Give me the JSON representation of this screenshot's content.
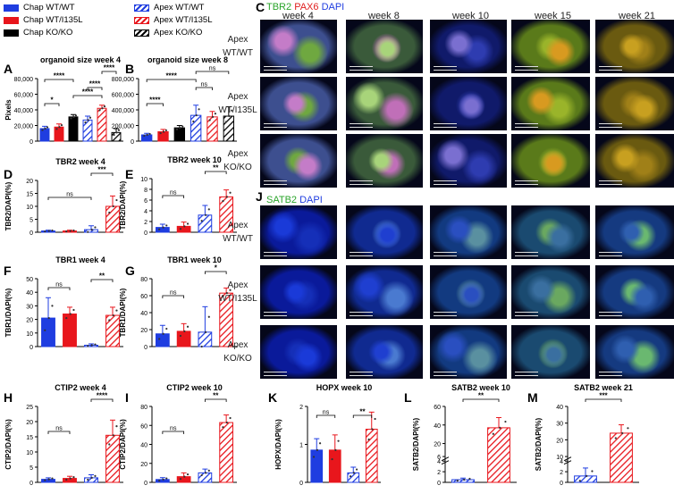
{
  "legend": [
    {
      "label": "Chap WT/WT",
      "color": "#1f3de0",
      "style": "solid"
    },
    {
      "label": "Apex WT/WT",
      "color": "#1f3de0",
      "style": "hatch"
    },
    {
      "label": "Chap WT/I135L",
      "color": "#e8161c",
      "style": "solid"
    },
    {
      "label": "Apex WT/I135L",
      "color": "#e8161c",
      "style": "hatch"
    },
    {
      "label": "Chap KO/KO",
      "color": "#000000",
      "style": "solid"
    },
    {
      "label": "Apex KO/KO",
      "color": "#000000",
      "style": "hatch"
    }
  ],
  "panels": {
    "C": "C",
    "J": "J",
    "micro_c_title": {
      "tbr2": "TBR2",
      "pax6": "PAX6",
      "dapi": "DAPI"
    },
    "micro_j_title": {
      "satb2": "SATB2",
      "dapi": "DAPI"
    },
    "weeks": [
      "week 4",
      "week 8",
      "week 10",
      "week 15",
      "week 21"
    ],
    "rows": [
      "Apex\nWT/WT",
      "Apex\nWT/I135L",
      "Apex\nKO/KO"
    ]
  },
  "chart_data": [
    {
      "panel": "A",
      "type": "bar",
      "title": "organoid size week 4",
      "ylabel": "Pixels",
      "ylim": [
        0,
        80000
      ],
      "yticks": [
        "0",
        "20,000",
        "40,000",
        "60,000",
        "80,000"
      ],
      "groups": [
        "Chap WT/WT",
        "Chap WT/I135L",
        "Chap KO/KO",
        "Apex WT/WT",
        "Apex WT/I135L",
        "Apex KO/KO"
      ],
      "values": [
        16000,
        18000,
        31000,
        27000,
        42000,
        11000
      ],
      "errors": [
        3000,
        4000,
        3000,
        5000,
        4000,
        5000
      ],
      "sig": [
        {
          "a": 0,
          "b": 1,
          "label": "*",
          "level": 1
        },
        {
          "a": 2,
          "b": 4,
          "label": "****",
          "level": 2
        },
        {
          "a": 3,
          "b": 4,
          "label": "****",
          "level": 3
        },
        {
          "a": 0,
          "b": 2,
          "label": "****",
          "level": 4
        },
        {
          "a": 4,
          "b": 5,
          "label": "****",
          "level": 5
        }
      ]
    },
    {
      "panel": "B",
      "type": "bar",
      "title": "organoid size week 8",
      "ylabel": "",
      "ylim": [
        0,
        800000
      ],
      "yticks": [
        "0",
        "200,000",
        "400,000",
        "600,000",
        "800,000"
      ],
      "groups": [
        "Chap WT/WT",
        "Chap WT/I135L",
        "Chap KO/KO",
        "Apex WT/WT",
        "Apex WT/I135L",
        "Apex KO/KO"
      ],
      "values": [
        80000,
        120000,
        170000,
        330000,
        310000,
        320000
      ],
      "errors": [
        20000,
        30000,
        30000,
        130000,
        70000,
        120000
      ],
      "sig": [
        {
          "a": 0,
          "b": 1,
          "label": "****",
          "level": 1
        },
        {
          "a": 3,
          "b": 4,
          "label": "ns",
          "level": 3
        },
        {
          "a": 0,
          "b": 3,
          "label": "****",
          "level": 4
        },
        {
          "a": 3,
          "b": 5,
          "label": "ns",
          "level": 5
        }
      ]
    },
    {
      "panel": "D",
      "type": "bar",
      "title": "TBR2 week 4",
      "ylabel": "TBR2/DAPI(%)",
      "ylim": [
        0,
        20
      ],
      "yticks": [
        "0",
        "5",
        "10",
        "15",
        "20"
      ],
      "groups": [
        "Chap WT/WT",
        "Chap WT/I135L",
        "Apex WT/WT",
        "Apex WT/I135L"
      ],
      "values": [
        0.5,
        0.5,
        1,
        10
      ],
      "errors": [
        0.3,
        0.3,
        1.5,
        4
      ],
      "sig": [
        {
          "a": 0,
          "b": 2,
          "label": "ns",
          "level": 2
        },
        {
          "a": 2,
          "b": 3,
          "label": "***",
          "level": 5
        }
      ]
    },
    {
      "panel": "E",
      "type": "bar",
      "title": "TBR2 week 10",
      "ylabel": "TBR2/DAPI(%)",
      "ylim": [
        0,
        10
      ],
      "yticks": [
        "0",
        "2",
        "4",
        "6",
        "8",
        "10"
      ],
      "groups": [
        "Chap WT/WT",
        "Chap WT/I135L",
        "Apex WT/WT",
        "Apex WT/I135L"
      ],
      "values": [
        0.9,
        1.1,
        3.2,
        6.6
      ],
      "errors": [
        0.6,
        0.8,
        1.8,
        1.3
      ],
      "sig": [
        {
          "a": 0,
          "b": 1,
          "label": "ns",
          "level": 2
        },
        {
          "a": 2,
          "b": 3,
          "label": "**",
          "level": 5
        }
      ]
    },
    {
      "panel": "F",
      "type": "bar",
      "title": "TBR1 week 4",
      "ylabel": "TBR1/DAPI(%)",
      "ylim": [
        0,
        50
      ],
      "yticks": [
        "0",
        "10",
        "20",
        "30",
        "40",
        "50"
      ],
      "groups": [
        "Chap WT/WT",
        "Chap WT/I135L",
        "Apex WT/WT",
        "Apex WT/I135L"
      ],
      "values": [
        21,
        24,
        1,
        23
      ],
      "errors": [
        15,
        5,
        1,
        6
      ],
      "sig": [
        {
          "a": 0,
          "b": 1,
          "label": "ns",
          "level": 3
        },
        {
          "a": 2,
          "b": 3,
          "label": "**",
          "level": 4
        }
      ]
    },
    {
      "panel": "G",
      "type": "bar",
      "title": "TBR1 week 10",
      "ylabel": "TBR1/DAPI(%)",
      "ylim": [
        0,
        80
      ],
      "yticks": [
        "0",
        "20",
        "40",
        "60",
        "80"
      ],
      "groups": [
        "Chap WT/WT",
        "Chap WT/I135L",
        "Apex WT/WT",
        "Apex WT/I135L"
      ],
      "values": [
        15,
        18,
        17,
        63
      ],
      "errors": [
        10,
        9,
        30,
        6
      ],
      "sig": [
        {
          "a": 0,
          "b": 1,
          "label": "ns",
          "level": 2
        },
        {
          "a": 2,
          "b": 3,
          "label": "*",
          "level": 5
        }
      ]
    },
    {
      "panel": "H",
      "type": "bar",
      "title": "CTIP2 week 4",
      "ylabel": "CTIP2/DAPI(%)",
      "ylim": [
        0,
        25
      ],
      "yticks": [
        "0",
        "5",
        "10",
        "15",
        "20",
        "25"
      ],
      "groups": [
        "Chap WT/WT",
        "Chap WT/I135L",
        "Apex WT/WT",
        "Apex WT/I135L"
      ],
      "values": [
        1,
        1.3,
        1.5,
        15.5
      ],
      "errors": [
        0.5,
        0.7,
        1,
        5
      ],
      "sig": [
        {
          "a": 0,
          "b": 1,
          "label": "ns",
          "level": 1
        },
        {
          "a": 2,
          "b": 3,
          "label": "****",
          "level": 5
        }
      ]
    },
    {
      "panel": "I",
      "type": "bar",
      "title": "CTIP2 week 10",
      "ylabel": "CTIP2/DAPI(%)",
      "ylim": [
        0,
        80
      ],
      "yticks": [
        "0",
        "20",
        "40",
        "60",
        "80"
      ],
      "groups": [
        "Chap WT/WT",
        "Chap WT/I135L",
        "Apex WT/WT",
        "Apex WT/I135L"
      ],
      "values": [
        3,
        6,
        10,
        63
      ],
      "errors": [
        2,
        4,
        4,
        8
      ],
      "sig": [
        {
          "a": 0,
          "b": 1,
          "label": "ns",
          "level": 1
        },
        {
          "a": 2,
          "b": 3,
          "label": "**",
          "level": 5
        }
      ]
    },
    {
      "panel": "K",
      "type": "bar",
      "title": "HOPX week 10",
      "ylabel": "HOPX/DAPI(%)",
      "ylim": [
        0,
        2
      ],
      "yticks": [
        "0",
        "1",
        "2"
      ],
      "groups": [
        "Chap WT/WT",
        "Chap WT/I135L",
        "Apex WT/WT",
        "Apex WT/I135L"
      ],
      "values": [
        0.85,
        0.85,
        0.25,
        1.4
      ],
      "errors": [
        0.3,
        0.4,
        0.15,
        0.45
      ],
      "sig": [
        {
          "a": 0,
          "b": 1,
          "label": "ns",
          "level": 3
        },
        {
          "a": 2,
          "b": 3,
          "label": "**",
          "level": 3
        }
      ]
    },
    {
      "panel": "L",
      "type": "bar",
      "title": "SATB2 week 10",
      "ylabel": "SATB2/DAPI(%)",
      "ylim": [
        0,
        60
      ],
      "yticks": [
        "0",
        "2",
        "4",
        "6",
        "20",
        "40",
        "60"
      ],
      "broken": true,
      "groups": [
        "Apex WT/WT",
        "Apex WT/I135L"
      ],
      "values": [
        0.5,
        37
      ],
      "errors": [
        0.3,
        11
      ],
      "sig": [
        {
          "a": 0,
          "b": 1,
          "label": "**",
          "level": 5
        }
      ]
    },
    {
      "panel": "M",
      "type": "bar",
      "title": "SATB2 week 21",
      "ylabel": "SATB2/DAPI(%)",
      "ylim": [
        0,
        40
      ],
      "yticks": [
        "0",
        "2",
        "4",
        "10",
        "20",
        "30",
        "40"
      ],
      "broken": true,
      "groups": [
        "Apex WT/WT",
        "Apex WT/I135L"
      ],
      "values": [
        1.2,
        24
      ],
      "errors": [
        1.5,
        5
      ],
      "sig": [
        {
          "a": 0,
          "b": 1,
          "label": "***",
          "level": 5
        }
      ]
    }
  ]
}
